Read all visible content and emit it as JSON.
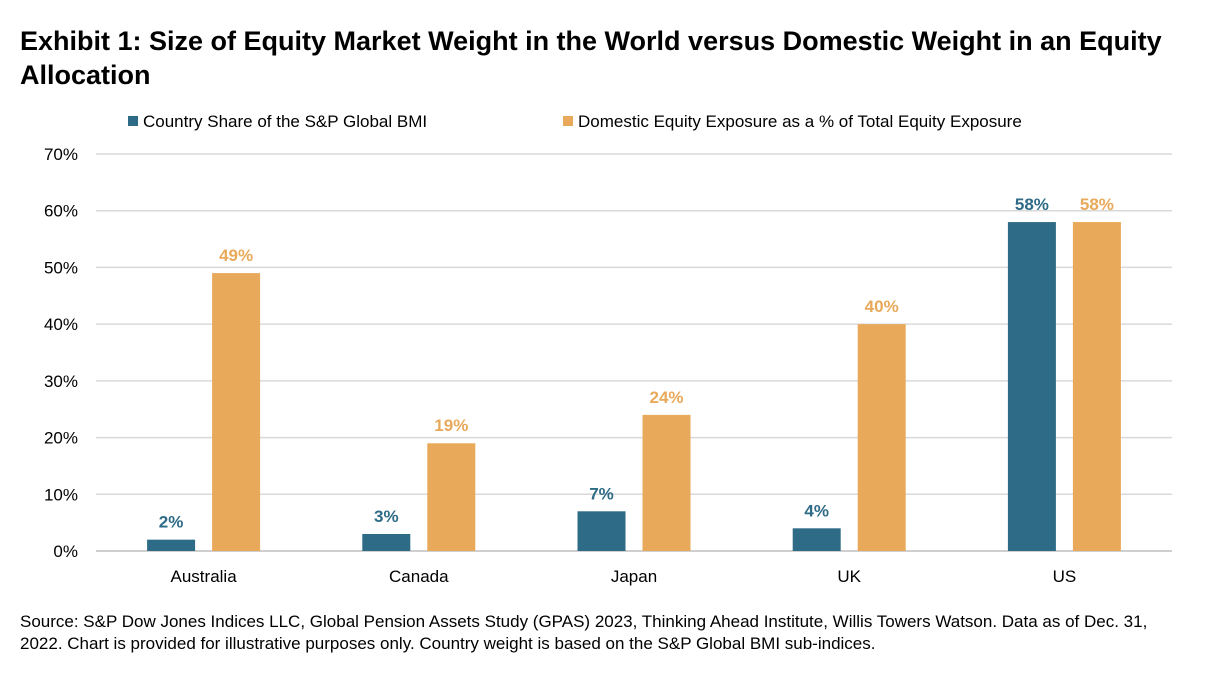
{
  "chart_data": {
    "type": "bar",
    "title": "Exhibit 1: Size of Equity Market Weight in the World versus Domestic Weight in an Equity Allocation",
    "categories": [
      "Australia",
      "Canada",
      "Japan",
      "UK",
      "US"
    ],
    "series": [
      {
        "name": "Country Share of the S&P Global BMI",
        "color": "#2E6B86",
        "values": [
          2,
          3,
          7,
          4,
          58
        ],
        "labels": [
          "2%",
          "3%",
          "7%",
          "4%",
          "58%"
        ]
      },
      {
        "name": "Domestic Equity Exposure as a % of Total Equity Exposure",
        "color": "#E8A95A",
        "values": [
          49,
          19,
          24,
          40,
          58
        ],
        "labels": [
          "49%",
          "19%",
          "24%",
          "40%",
          "58%"
        ]
      }
    ],
    "ylim": [
      0,
      70
    ],
    "yticks": [
      "0%",
      "10%",
      "20%",
      "30%",
      "40%",
      "50%",
      "60%",
      "70%"
    ],
    "grid": true,
    "legend": "top",
    "source": "Source: S&P Dow Jones Indices LLC, Global Pension Assets Study (GPAS) 2023, Thinking Ahead Institute, Willis Towers Watson. Data as of Dec. 31, 2022. Chart is provided for illustrative purposes only. Country weight is based on the S&P Global BMI sub-indices."
  }
}
